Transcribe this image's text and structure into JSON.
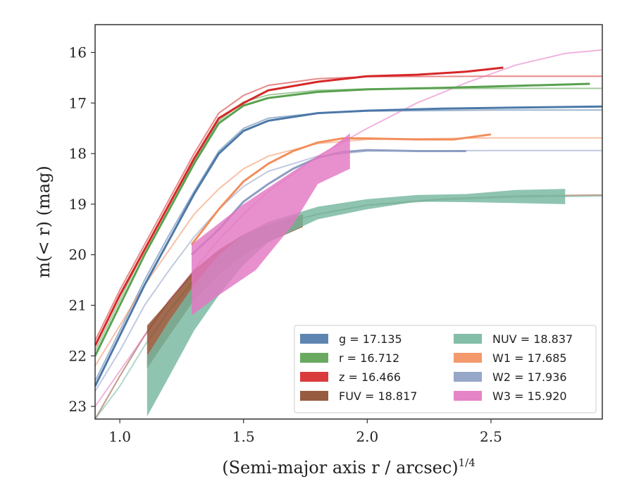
{
  "chart_data": {
    "type": "line",
    "xlabel": "(Semi-major axis r / arcsec)",
    "xlabel_sup": "1/4",
    "ylabel": "m(< r) (mag)",
    "xlim": [
      0.9,
      2.95
    ],
    "ylim": [
      23.25,
      15.45
    ],
    "y_inverted": true,
    "x_ticks": [
      "1.0",
      "1.5",
      "2.0",
      "2.5"
    ],
    "y_ticks": [
      "16",
      "17",
      "18",
      "19",
      "20",
      "21",
      "22",
      "23"
    ],
    "grid": false,
    "legend_position": "lower-right",
    "series": [
      {
        "key": "g",
        "color": "#4c78a8",
        "legend": "g = 17.135",
        "data": [
          [
            0.9,
            22.6
          ],
          [
            1.0,
            21.6
          ],
          [
            1.1,
            20.6
          ],
          [
            1.2,
            19.7
          ],
          [
            1.3,
            18.8
          ],
          [
            1.4,
            18.0
          ],
          [
            1.5,
            17.55
          ],
          [
            1.6,
            17.35
          ],
          [
            1.8,
            17.2
          ],
          [
            2.0,
            17.15
          ],
          [
            2.3,
            17.11
          ],
          [
            2.6,
            17.09
          ],
          [
            2.95,
            17.07
          ]
        ],
        "model": [
          [
            0.9,
            22.5
          ],
          [
            1.0,
            21.5
          ],
          [
            1.1,
            20.5
          ],
          [
            1.2,
            19.6
          ],
          [
            1.3,
            18.75
          ],
          [
            1.4,
            17.95
          ],
          [
            1.5,
            17.5
          ],
          [
            1.6,
            17.3
          ],
          [
            1.8,
            17.2
          ],
          [
            2.0,
            17.16
          ],
          [
            2.5,
            17.14
          ],
          [
            2.95,
            17.14
          ]
        ]
      },
      {
        "key": "r",
        "color": "#59a14f",
        "legend": "r = 16.712",
        "data": [
          [
            0.9,
            22.0
          ],
          [
            1.0,
            21.0
          ],
          [
            1.1,
            20.0
          ],
          [
            1.2,
            19.1
          ],
          [
            1.3,
            18.2
          ],
          [
            1.4,
            17.4
          ],
          [
            1.5,
            17.05
          ],
          [
            1.6,
            16.9
          ],
          [
            1.8,
            16.78
          ],
          [
            2.0,
            16.73
          ],
          [
            2.3,
            16.7
          ],
          [
            2.6,
            16.66
          ],
          [
            2.9,
            16.62
          ]
        ],
        "model": [
          [
            0.9,
            21.9
          ],
          [
            1.0,
            20.9
          ],
          [
            1.1,
            19.9
          ],
          [
            1.2,
            19.0
          ],
          [
            1.3,
            18.15
          ],
          [
            1.4,
            17.35
          ],
          [
            1.5,
            16.98
          ],
          [
            1.6,
            16.84
          ],
          [
            1.8,
            16.75
          ],
          [
            2.0,
            16.72
          ],
          [
            2.5,
            16.71
          ],
          [
            2.95,
            16.71
          ]
        ]
      },
      {
        "key": "z",
        "color": "#d62728",
        "legend": "z = 16.466",
        "data": [
          [
            0.9,
            21.8
          ],
          [
            1.0,
            20.8
          ],
          [
            1.1,
            19.9
          ],
          [
            1.2,
            19.0
          ],
          [
            1.3,
            18.1
          ],
          [
            1.4,
            17.3
          ],
          [
            1.5,
            17.0
          ],
          [
            1.6,
            16.75
          ],
          [
            1.8,
            16.58
          ],
          [
            2.0,
            16.47
          ],
          [
            2.2,
            16.44
          ],
          [
            2.4,
            16.38
          ],
          [
            2.55,
            16.3
          ]
        ],
        "model": [
          [
            0.9,
            21.7
          ],
          [
            1.0,
            20.7
          ],
          [
            1.1,
            19.8
          ],
          [
            1.2,
            18.9
          ],
          [
            1.3,
            18.0
          ],
          [
            1.4,
            17.2
          ],
          [
            1.5,
            16.85
          ],
          [
            1.6,
            16.65
          ],
          [
            1.8,
            16.52
          ],
          [
            2.0,
            16.48
          ],
          [
            2.5,
            16.47
          ],
          [
            2.95,
            16.47
          ]
        ]
      },
      {
        "key": "FUV",
        "color": "#8c4a2a",
        "legend": "FUV = 18.817",
        "band_upper": [
          [
            1.11,
            21.4
          ],
          [
            1.2,
            20.9
          ],
          [
            1.3,
            20.3
          ],
          [
            1.4,
            19.9
          ],
          [
            1.5,
            19.6
          ],
          [
            1.6,
            19.4
          ],
          [
            1.74,
            19.2
          ]
        ],
        "band_lower": [
          [
            1.11,
            22.25
          ],
          [
            1.2,
            21.6
          ],
          [
            1.3,
            20.9
          ],
          [
            1.4,
            20.4
          ],
          [
            1.5,
            20.0
          ],
          [
            1.6,
            19.75
          ],
          [
            1.74,
            19.45
          ]
        ],
        "model": [
          [
            0.9,
            23.25
          ],
          [
            1.0,
            22.4
          ],
          [
            1.1,
            21.6
          ],
          [
            1.2,
            20.9
          ],
          [
            1.3,
            20.35
          ],
          [
            1.4,
            19.95
          ],
          [
            1.5,
            19.65
          ],
          [
            1.6,
            19.45
          ],
          [
            1.8,
            19.2
          ],
          [
            2.0,
            19.02
          ],
          [
            2.3,
            18.9
          ],
          [
            2.6,
            18.84
          ],
          [
            2.95,
            18.82
          ]
        ]
      },
      {
        "key": "NUV",
        "color": "#76b7a0",
        "legend": "NUV = 18.837",
        "band_upper": [
          [
            1.11,
            22.0
          ],
          [
            1.2,
            21.3
          ],
          [
            1.3,
            20.6
          ],
          [
            1.4,
            20.0
          ],
          [
            1.5,
            19.6
          ],
          [
            1.6,
            19.35
          ],
          [
            1.8,
            19.05
          ],
          [
            2.0,
            18.9
          ],
          [
            2.2,
            18.82
          ],
          [
            2.4,
            18.8
          ],
          [
            2.6,
            18.72
          ],
          [
            2.8,
            18.7
          ]
        ],
        "band_lower": [
          [
            1.11,
            23.2
          ],
          [
            1.2,
            22.4
          ],
          [
            1.3,
            21.5
          ],
          [
            1.4,
            20.8
          ],
          [
            1.5,
            20.2
          ],
          [
            1.6,
            19.75
          ],
          [
            1.8,
            19.3
          ],
          [
            2.0,
            19.1
          ],
          [
            2.2,
            18.95
          ],
          [
            2.4,
            18.96
          ],
          [
            2.6,
            18.98
          ],
          [
            2.8,
            19.0
          ]
        ],
        "model": [
          [
            0.9,
            23.25
          ],
          [
            1.0,
            22.6
          ],
          [
            1.1,
            21.8
          ],
          [
            1.2,
            21.1
          ],
          [
            1.3,
            20.5
          ],
          [
            1.4,
            20.0
          ],
          [
            1.5,
            19.7
          ],
          [
            1.6,
            19.45
          ],
          [
            1.8,
            19.2
          ],
          [
            2.0,
            19.02
          ],
          [
            2.3,
            18.92
          ],
          [
            2.6,
            18.86
          ],
          [
            2.95,
            18.84
          ]
        ]
      },
      {
        "key": "W1",
        "color": "#f28e5c",
        "legend": "W1 = 17.685",
        "data": [
          [
            1.29,
            19.8
          ],
          [
            1.4,
            19.1
          ],
          [
            1.5,
            18.55
          ],
          [
            1.6,
            18.2
          ],
          [
            1.7,
            17.95
          ],
          [
            1.8,
            17.78
          ],
          [
            1.9,
            17.7
          ],
          [
            2.0,
            17.7
          ],
          [
            2.2,
            17.72
          ],
          [
            2.35,
            17.72
          ],
          [
            2.5,
            17.62
          ]
        ],
        "model": [
          [
            0.9,
            22.2
          ],
          [
            1.0,
            21.4
          ],
          [
            1.1,
            20.6
          ],
          [
            1.2,
            19.9
          ],
          [
            1.3,
            19.2
          ],
          [
            1.4,
            18.7
          ],
          [
            1.5,
            18.3
          ],
          [
            1.6,
            18.05
          ],
          [
            1.8,
            17.8
          ],
          [
            2.0,
            17.72
          ],
          [
            2.5,
            17.69
          ],
          [
            2.95,
            17.69
          ]
        ]
      },
      {
        "key": "W2",
        "color": "#8c9dc2",
        "legend": "W2 = 17.936",
        "data": [
          [
            1.29,
            20.0
          ],
          [
            1.4,
            19.5
          ],
          [
            1.5,
            18.95
          ],
          [
            1.6,
            18.6
          ],
          [
            1.7,
            18.3
          ],
          [
            1.8,
            18.08
          ],
          [
            1.9,
            17.97
          ],
          [
            2.0,
            17.93
          ],
          [
            2.2,
            17.95
          ],
          [
            2.4,
            17.95
          ]
        ],
        "model": [
          [
            0.9,
            22.7
          ],
          [
            1.0,
            21.9
          ],
          [
            1.1,
            21.0
          ],
          [
            1.2,
            20.3
          ],
          [
            1.3,
            19.65
          ],
          [
            1.4,
            19.1
          ],
          [
            1.5,
            18.65
          ],
          [
            1.6,
            18.35
          ],
          [
            1.8,
            18.05
          ],
          [
            2.0,
            17.95
          ],
          [
            2.5,
            17.94
          ],
          [
            2.95,
            17.94
          ]
        ]
      },
      {
        "key": "W3",
        "color": "#e377c2",
        "legend": "W3 = 15.920",
        "band_upper": [
          [
            1.29,
            19.8
          ],
          [
            1.5,
            19.0
          ],
          [
            1.7,
            18.35
          ],
          [
            1.85,
            17.9
          ],
          [
            1.93,
            17.6
          ]
        ],
        "band_lower": [
          [
            1.29,
            21.2
          ],
          [
            1.4,
            20.8
          ],
          [
            1.55,
            20.3
          ],
          [
            1.7,
            19.4
          ],
          [
            1.8,
            18.6
          ],
          [
            1.93,
            18.3
          ]
        ],
        "model": [
          [
            0.9,
            23.0
          ],
          [
            1.0,
            22.3
          ],
          [
            1.1,
            21.6
          ],
          [
            1.2,
            20.9
          ],
          [
            1.3,
            20.3
          ],
          [
            1.4,
            19.7
          ],
          [
            1.5,
            19.2
          ],
          [
            1.6,
            18.75
          ],
          [
            1.8,
            18.05
          ],
          [
            2.0,
            17.5
          ],
          [
            2.2,
            17.0
          ],
          [
            2.4,
            16.6
          ],
          [
            2.6,
            16.25
          ],
          [
            2.8,
            16.02
          ],
          [
            2.95,
            15.95
          ]
        ]
      }
    ],
    "legend_layout": [
      [
        "g",
        "r",
        "z",
        "FUV"
      ],
      [
        "NUV",
        "W1",
        "W2",
        "W3"
      ]
    ]
  }
}
